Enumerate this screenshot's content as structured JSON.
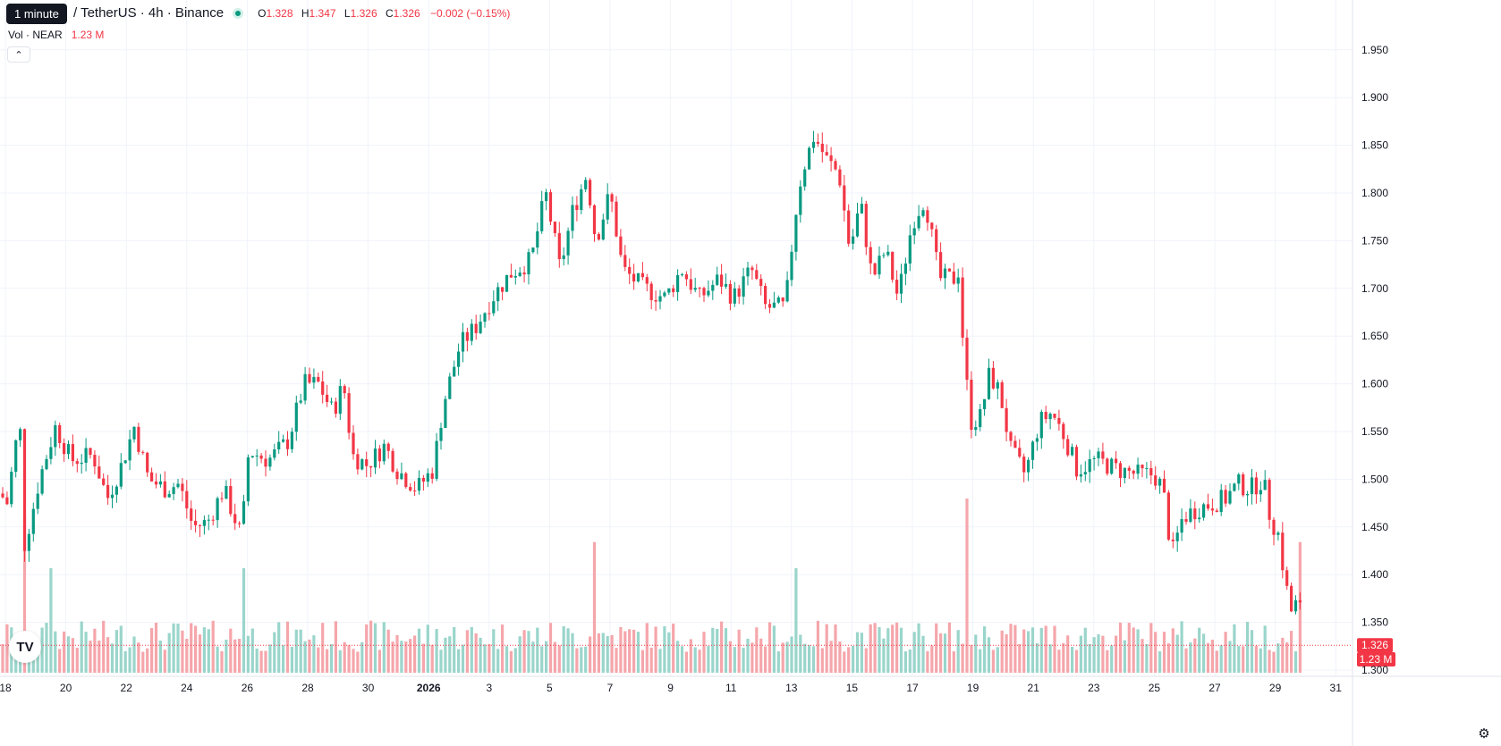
{
  "header": {
    "tooltip": "1 minute",
    "symbol_title": "/ TetherUS · 4h · Binance",
    "ohlc": {
      "o_label": "O",
      "o_value": "1.328",
      "h_label": "H",
      "h_value": "1.347",
      "l_label": "L",
      "l_value": "1.326",
      "c_label": "C",
      "c_value": "1.326",
      "change": "−0.002 (−0.15%)"
    },
    "volume_label": "Vol · NEAR",
    "volume_value": "1.23 M",
    "collapse_icon": "chevron-up-icon"
  },
  "colors": {
    "up": "#089981",
    "down": "#f23645",
    "vol_up": "#9ad5cb",
    "vol_down": "#f5a6ab",
    "grid": "#f0f3fa"
  },
  "logo_icon": "tradingview-logo",
  "settings_icon": "gear-icon",
  "chart_data": {
    "type": "candlestick",
    "y_axis": {
      "ticks": [
        "1.950",
        "1.900",
        "1.850",
        "1.800",
        "1.750",
        "1.700",
        "1.650",
        "1.600",
        "1.550",
        "1.500",
        "1.450",
        "1.400",
        "1.350",
        "1.300"
      ],
      "range": [
        1.2743,
        1.9592
      ]
    },
    "x_axis": {
      "ticks": [
        "18",
        "20",
        "22",
        "24",
        "26",
        "28",
        "30",
        "2026",
        "3",
        "5",
        "7",
        "9",
        "11",
        "13",
        "15",
        "17",
        "19",
        "21",
        "23",
        "25",
        "27",
        "29",
        "31"
      ]
    },
    "last_price_label": "1.326",
    "last_volume_label": "1.23 M",
    "last_price": 1.326,
    "anchors": [
      {
        "x": 0,
        "c": 1.485
      },
      {
        "x": 8,
        "c": 1.475
      },
      {
        "x": 22,
        "c": 1.565
      },
      {
        "x": 27,
        "c": 1.43
      },
      {
        "x": 36,
        "c": 1.465
      },
      {
        "x": 44,
        "c": 1.5
      },
      {
        "x": 62,
        "c": 1.555
      },
      {
        "x": 80,
        "c": 1.52
      },
      {
        "x": 104,
        "c": 1.525
      },
      {
        "x": 120,
        "c": 1.48
      },
      {
        "x": 136,
        "c": 1.515
      },
      {
        "x": 150,
        "c": 1.555
      },
      {
        "x": 166,
        "c": 1.5
      },
      {
        "x": 185,
        "c": 1.49
      },
      {
        "x": 200,
        "c": 1.495
      },
      {
        "x": 216,
        "c": 1.45
      },
      {
        "x": 232,
        "c": 1.455
      },
      {
        "x": 250,
        "c": 1.49
      },
      {
        "x": 270,
        "c": 1.44
      },
      {
        "x": 278,
        "c": 1.53
      },
      {
        "x": 300,
        "c": 1.52
      },
      {
        "x": 322,
        "c": 1.54
      },
      {
        "x": 340,
        "c": 1.6
      },
      {
        "x": 356,
        "c": 1.6
      },
      {
        "x": 372,
        "c": 1.57
      },
      {
        "x": 384,
        "c": 1.6
      },
      {
        "x": 394,
        "c": 1.525
      },
      {
        "x": 410,
        "c": 1.515
      },
      {
        "x": 430,
        "c": 1.535
      },
      {
        "x": 444,
        "c": 1.51
      },
      {
        "x": 466,
        "c": 1.49
      },
      {
        "x": 484,
        "c": 1.51
      },
      {
        "x": 496,
        "c": 1.58
      },
      {
        "x": 514,
        "c": 1.64
      },
      {
        "x": 532,
        "c": 1.66
      },
      {
        "x": 550,
        "c": 1.69
      },
      {
        "x": 570,
        "c": 1.715
      },
      {
        "x": 594,
        "c": 1.73
      },
      {
        "x": 610,
        "c": 1.8
      },
      {
        "x": 626,
        "c": 1.72
      },
      {
        "x": 640,
        "c": 1.78
      },
      {
        "x": 656,
        "c": 1.82
      },
      {
        "x": 666,
        "c": 1.75
      },
      {
        "x": 682,
        "c": 1.8
      },
      {
        "x": 696,
        "c": 1.72
      },
      {
        "x": 720,
        "c": 1.7
      },
      {
        "x": 744,
        "c": 1.69
      },
      {
        "x": 762,
        "c": 1.72
      },
      {
        "x": 782,
        "c": 1.69
      },
      {
        "x": 804,
        "c": 1.71
      },
      {
        "x": 820,
        "c": 1.69
      },
      {
        "x": 840,
        "c": 1.72
      },
      {
        "x": 856,
        "c": 1.68
      },
      {
        "x": 878,
        "c": 1.68
      },
      {
        "x": 888,
        "c": 1.77
      },
      {
        "x": 896,
        "c": 1.82
      },
      {
        "x": 910,
        "c": 1.86
      },
      {
        "x": 924,
        "c": 1.835
      },
      {
        "x": 938,
        "c": 1.82
      },
      {
        "x": 950,
        "c": 1.74
      },
      {
        "x": 962,
        "c": 1.79
      },
      {
        "x": 975,
        "c": 1.71
      },
      {
        "x": 990,
        "c": 1.74
      },
      {
        "x": 1004,
        "c": 1.69
      },
      {
        "x": 1020,
        "c": 1.77
      },
      {
        "x": 1034,
        "c": 1.795
      },
      {
        "x": 1050,
        "c": 1.71
      },
      {
        "x": 1066,
        "c": 1.71
      },
      {
        "x": 1072,
        "c": 1.72
      },
      {
        "x": 1078,
        "c": 1.62
      },
      {
        "x": 1086,
        "c": 1.56
      },
      {
        "x": 1096,
        "c": 1.565
      },
      {
        "x": 1106,
        "c": 1.61
      },
      {
        "x": 1118,
        "c": 1.59
      },
      {
        "x": 1130,
        "c": 1.53
      },
      {
        "x": 1146,
        "c": 1.505
      },
      {
        "x": 1162,
        "c": 1.56
      },
      {
        "x": 1176,
        "c": 1.57
      },
      {
        "x": 1190,
        "c": 1.545
      },
      {
        "x": 1204,
        "c": 1.51
      },
      {
        "x": 1226,
        "c": 1.52
      },
      {
        "x": 1250,
        "c": 1.51
      },
      {
        "x": 1272,
        "c": 1.505
      },
      {
        "x": 1290,
        "c": 1.505
      },
      {
        "x": 1300,
        "c": 1.49
      },
      {
        "x": 1310,
        "c": 1.42
      },
      {
        "x": 1322,
        "c": 1.46
      },
      {
        "x": 1340,
        "c": 1.47
      },
      {
        "x": 1356,
        "c": 1.475
      },
      {
        "x": 1370,
        "c": 1.48
      },
      {
        "x": 1384,
        "c": 1.495
      },
      {
        "x": 1398,
        "c": 1.49
      },
      {
        "x": 1412,
        "c": 1.5
      },
      {
        "x": 1420,
        "c": 1.46
      },
      {
        "x": 1430,
        "c": 1.44
      },
      {
        "x": 1436,
        "c": 1.395
      },
      {
        "x": 1444,
        "c": 1.36
      },
      {
        "x": 1452,
        "c": 1.375
      },
      {
        "x": 1458,
        "c": 1.326
      }
    ],
    "volume_spikes": [
      {
        "x": 28,
        "v": 0.9
      },
      {
        "x": 56,
        "v": 0.6
      },
      {
        "x": 272,
        "v": 0.6
      },
      {
        "x": 666,
        "v": 0.75
      },
      {
        "x": 890,
        "v": 0.6
      },
      {
        "x": 1080,
        "v": 1.0
      },
      {
        "x": 1452,
        "v": 0.75
      }
    ]
  }
}
